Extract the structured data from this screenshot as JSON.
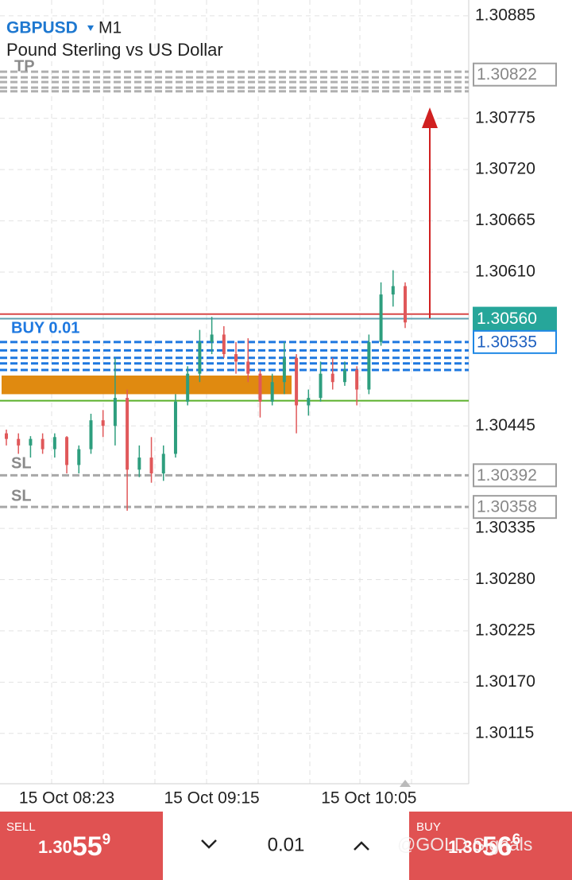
{
  "header": {
    "symbol": "GBPUSD",
    "timeframe": "M1",
    "description": "Pound Sterling vs US Dollar"
  },
  "chart_data": {
    "type": "candlestick",
    "categories": [
      null,
      null,
      null,
      null,
      null,
      "15 Oct 08:23",
      null,
      null,
      null,
      null,
      null,
      null,
      null,
      null,
      null,
      null,
      null,
      "15 Oct 09:15",
      null,
      null,
      null,
      null,
      null,
      null,
      null,
      null,
      null,
      null,
      null,
      null,
      "15 Oct 10:05",
      null,
      null,
      null
    ],
    "open": [
      1.30437,
      1.30431,
      1.30424,
      1.30431,
      1.3042,
      1.30433,
      1.30403,
      1.3042,
      1.30451,
      1.30445,
      1.30475,
      1.30398,
      1.30411,
      1.30394,
      1.30415,
      1.30471,
      1.30501,
      1.30535,
      1.30543,
      1.30522,
      1.30514,
      1.30501,
      1.30471,
      1.30492,
      1.30518,
      1.30467,
      1.30475,
      1.30501,
      1.30492,
      1.30505,
      1.30484,
      1.30535,
      1.30586,
      1.30595
    ],
    "high": [
      1.30441,
      1.30437,
      1.30434,
      1.30437,
      1.30437,
      1.30434,
      1.30424,
      1.30458,
      1.30462,
      1.30518,
      1.30484,
      1.30424,
      1.30433,
      1.30424,
      1.30479,
      1.30509,
      1.30548,
      1.30562,
      1.30552,
      1.30535,
      1.30539,
      1.30505,
      1.30501,
      1.30535,
      1.30522,
      1.30484,
      1.30514,
      1.30518,
      1.30514,
      1.30509,
      1.30543,
      1.30599,
      1.30612,
      1.30599
    ],
    "low": [
      1.30424,
      1.30415,
      1.30411,
      1.30415,
      1.30411,
      1.30394,
      1.30394,
      1.30415,
      1.30433,
      1.30424,
      1.30354,
      1.3039,
      1.30384,
      1.30386,
      1.30411,
      1.30467,
      1.30492,
      1.30522,
      1.30518,
      1.30501,
      1.30492,
      1.30454,
      1.30467,
      1.30479,
      1.30437,
      1.30456,
      1.30471,
      1.30484,
      1.30488,
      1.30467,
      1.30479,
      1.30531,
      1.30573,
      1.3055
    ],
    "close": [
      1.30431,
      1.30424,
      1.30431,
      1.3042,
      1.30433,
      1.30403,
      1.3042,
      1.30451,
      1.30445,
      1.30475,
      1.30398,
      1.30411,
      1.30394,
      1.30415,
      1.30471,
      1.30501,
      1.30535,
      1.30543,
      1.30522,
      1.30514,
      1.30501,
      1.30471,
      1.30492,
      1.30518,
      1.30467,
      1.30475,
      1.30501,
      1.30492,
      1.30505,
      1.30484,
      1.30535,
      1.30586,
      1.30595,
      1.30556
    ],
    "up_color": "#2e9e7e",
    "down_color": "#e0585a",
    "ylim": [
      1.30061,
      1.30902
    ],
    "yticks": [
      1.30885,
      1.30775,
      {
        "value": 1.3072,
        "label": "1.30720"
      },
      1.30665,
      {
        "value": 1.3061,
        "label": "1.30610"
      },
      1.30445,
      1.30335,
      {
        "value": 1.3028,
        "label": "1.30280"
      },
      1.30225,
      {
        "value": 1.3017,
        "label": "1.30170"
      },
      1.30115
    ],
    "grid": true,
    "price_labels": [
      {
        "value": 1.30822,
        "label": "1.30822",
        "color": "#9e9e9e",
        "style": "outline"
      },
      {
        "value": 1.3056,
        "label": "1.30560",
        "color": "#26a69a",
        "style": "filled"
      },
      {
        "value": 1.30535,
        "label": "1.30535",
        "color": "#1e88e5",
        "style": "outline"
      },
      {
        "value": 1.30392,
        "label": "1.30392",
        "color": "#9e9e9e",
        "style": "outline"
      },
      {
        "value": 1.30358,
        "label": "1.30358",
        "color": "#9e9e9e",
        "style": "outline"
      }
    ],
    "lines": [
      {
        "value": 1.30565,
        "color": "#d84848",
        "dash": false
      },
      {
        "value": 1.3056,
        "color": "#5fa0b0",
        "dash": false
      },
      {
        "value": 1.30472,
        "color": "#5bb02a",
        "dash": false
      },
      {
        "value": 1.30825,
        "color": "#b0b0b0",
        "dash": true
      },
      {
        "value": 1.30819,
        "color": "#b0b0b0",
        "dash": true
      },
      {
        "value": 1.30814,
        "color": "#b0b0b0",
        "dash": true
      },
      {
        "value": 1.30808,
        "color": "#b0b0b0",
        "dash": true
      },
      {
        "value": 1.30804,
        "color": "#b0b0b0",
        "dash": true
      },
      {
        "value": 1.30535,
        "color": "#1e78e0",
        "dash": true
      },
      {
        "value": 1.30526,
        "color": "#1e78e0",
        "dash": true
      },
      {
        "value": 1.30518,
        "color": "#1e78e0",
        "dash": true
      },
      {
        "value": 1.30512,
        "color": "#1e78e0",
        "dash": true
      },
      {
        "value": 1.30505,
        "color": "#1e78e0",
        "dash": true
      },
      {
        "value": 1.30392,
        "color": "#a8a8a8",
        "dash": true
      },
      {
        "value": 1.30358,
        "color": "#a8a8a8",
        "dash": true
      }
    ],
    "zone": {
      "values": [
        1.30479,
        1.30499
      ],
      "color": "#e08a10"
    },
    "annotations": {
      "buy": "BUY 0.01",
      "sl": [
        "SL",
        "SL"
      ],
      "tp": "TP"
    }
  },
  "trade_bar": {
    "sell": {
      "label": "SELL",
      "main": "1.30",
      "big": "55",
      "small": "9"
    },
    "volume": "0.01",
    "buy": {
      "label": "BUY",
      "main": "1.30",
      "big": "56",
      "small": "6"
    }
  },
  "watermark": "@GOLD Signals"
}
